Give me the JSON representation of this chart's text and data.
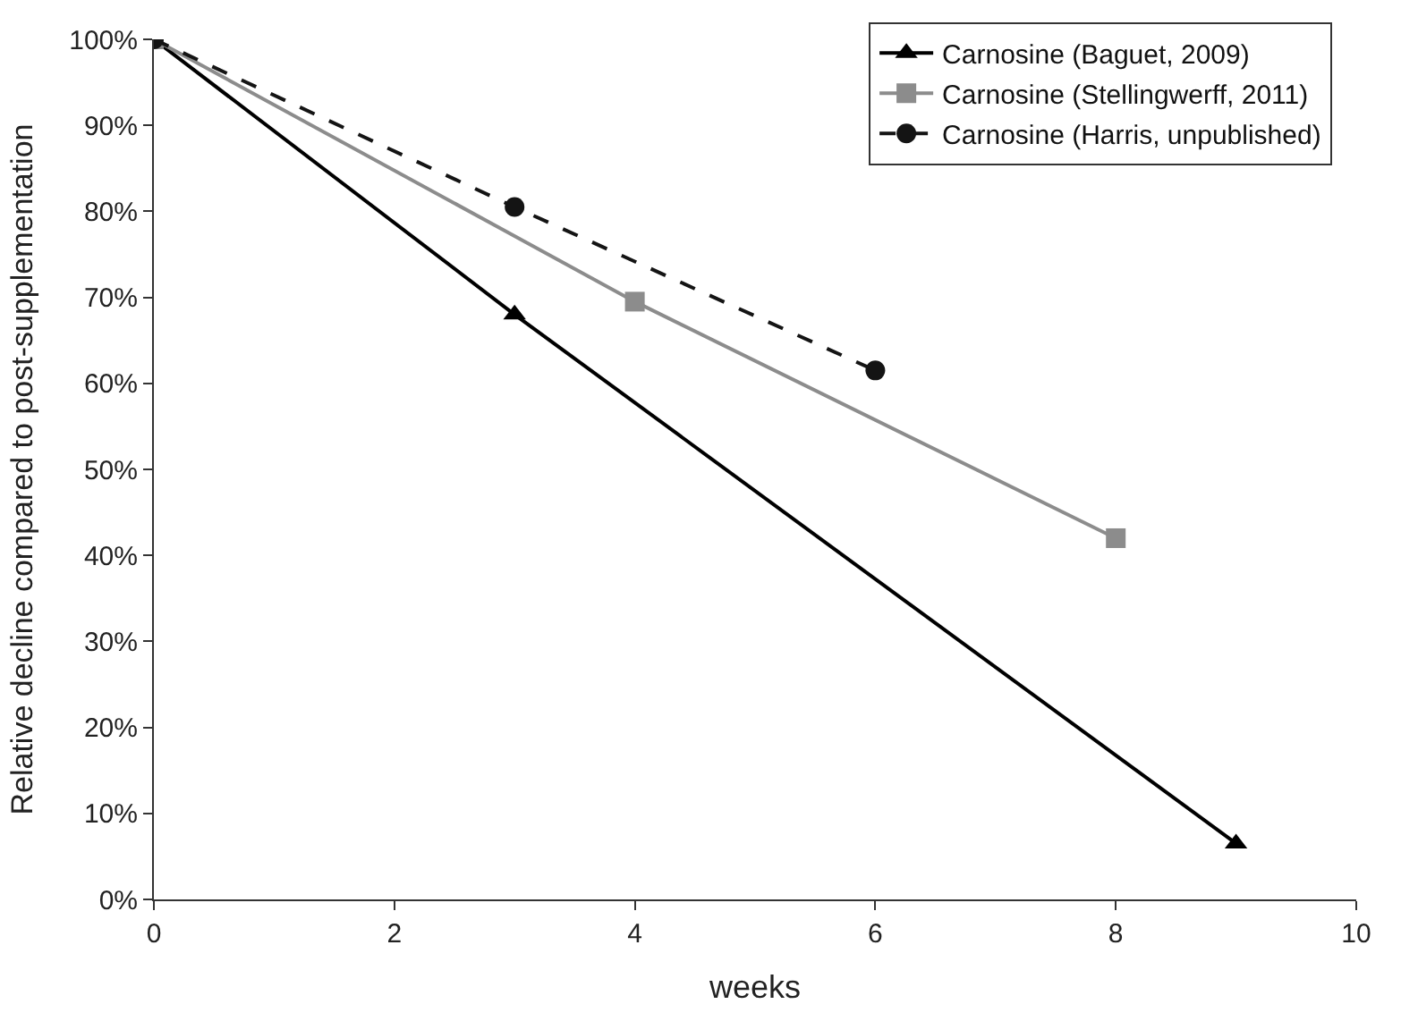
{
  "chart_data": {
    "type": "line",
    "xlabel": "weeks",
    "ylabel": "Relative decline compared to post-supplementation",
    "xlim": [
      0,
      10
    ],
    "xticks": [
      0,
      2,
      4,
      6,
      8,
      10
    ],
    "ylim": [
      0,
      100
    ],
    "yticks": [
      {
        "value": 0,
        "label": "0%"
      },
      {
        "value": 10,
        "label": "10%"
      },
      {
        "value": 20,
        "label": "20%"
      },
      {
        "value": 30,
        "label": "30%"
      },
      {
        "value": 40,
        "label": "40%"
      },
      {
        "value": 50,
        "label": "50%"
      },
      {
        "value": 60,
        "label": "60%"
      },
      {
        "value": 70,
        "label": "70%"
      },
      {
        "value": 80,
        "label": "80%"
      },
      {
        "value": 90,
        "label": "90%"
      },
      {
        "value": 100,
        "label": "100%"
      }
    ],
    "legend": "top right",
    "series": [
      {
        "name": "Carnosine (Baguet, 2009)",
        "color": "#000000",
        "x": [
          0,
          3,
          9
        ],
        "values": [
          100,
          68,
          6.5
        ],
        "marker": "triangle",
        "line_style": "solid"
      },
      {
        "name": "Carnosine (Stellingwerff, 2011)",
        "color": "#8c8c8c",
        "x": [
          0,
          4,
          8
        ],
        "values": [
          100,
          69.5,
          42
        ],
        "marker": "square",
        "line_style": "solid"
      },
      {
        "name": "Carnosine (Harris, unpublished)",
        "color": "#141414",
        "x": [
          0,
          3,
          6
        ],
        "values": [
          100,
          80.5,
          61.5
        ],
        "marker": "circle",
        "line_style": "dashed"
      }
    ]
  }
}
